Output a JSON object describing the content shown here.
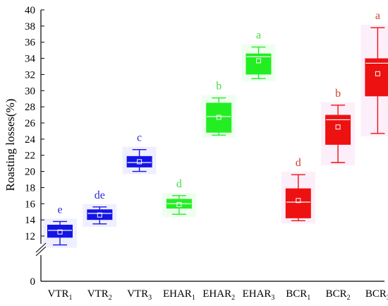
{
  "chart_data": {
    "type": "box",
    "ylabel": "Roasting losses(%)",
    "ylim": [
      0,
      40
    ],
    "axis_break": [
      0,
      12
    ],
    "y_ticks": [
      {
        "value": 0,
        "label": "0"
      },
      {
        "value": 12,
        "label": "12"
      },
      {
        "value": 14,
        "label": "14"
      },
      {
        "value": 16,
        "label": "16"
      },
      {
        "value": 18,
        "label": "18"
      },
      {
        "value": 20,
        "label": "20"
      },
      {
        "value": 22,
        "label": "22"
      },
      {
        "value": 24,
        "label": "24"
      },
      {
        "value": 26,
        "label": "26"
      },
      {
        "value": 28,
        "label": "28"
      },
      {
        "value": 30,
        "label": "30"
      },
      {
        "value": 32,
        "label": "32"
      },
      {
        "value": 34,
        "label": "34"
      },
      {
        "value": 36,
        "label": "36"
      },
      {
        "value": 38,
        "label": "38"
      },
      {
        "value": 40,
        "label": "40"
      }
    ],
    "colors": {
      "VTR": "#1414e6",
      "EHAR": "#22ee22",
      "BCR": "#ee1111"
    },
    "label_colors": {
      "VTR": "#2a2ae0",
      "EHAR": "#44dd44",
      "BCR": "#cc4433"
    },
    "halo_colors": {
      "VTR": "#b8b8ff",
      "EHAR": "#b8ffb8",
      "BCR": "#f0b8e8"
    },
    "groups": [
      {
        "base": "VTR",
        "sub": "1",
        "group": "VTR",
        "whisker_low": 10.9,
        "q1": 11.8,
        "median": 12.7,
        "q3": 13.4,
        "whisker_high": 13.8,
        "mean": 12.5,
        "letter": "e"
      },
      {
        "base": "VTR",
        "sub": "2",
        "group": "VTR",
        "whisker_low": 13.5,
        "q1": 14.0,
        "median": 14.8,
        "q3": 15.3,
        "whisker_high": 15.6,
        "mean": 14.6,
        "letter": "de"
      },
      {
        "base": "VTR",
        "sub": "3",
        "group": "VTR",
        "whisker_low": 20.0,
        "q1": 20.5,
        "median": 21.1,
        "q3": 21.9,
        "whisker_high": 22.7,
        "mean": 21.2,
        "letter": "c"
      },
      {
        "base": "EHAR",
        "sub": "1",
        "group": "EHAR",
        "whisker_low": 14.7,
        "q1": 15.4,
        "median": 16.0,
        "q3": 16.6,
        "whisker_high": 17.0,
        "mean": 15.9,
        "letter": "d"
      },
      {
        "base": "EHAR",
        "sub": "2",
        "group": "EHAR",
        "whisker_low": 24.5,
        "q1": 24.8,
        "median": 26.8,
        "q3": 28.5,
        "whisker_high": 29.1,
        "mean": 26.7,
        "letter": "b"
      },
      {
        "base": "EHAR",
        "sub": "3",
        "group": "EHAR",
        "whisker_low": 31.5,
        "q1": 32.0,
        "median": 34.2,
        "q3": 34.6,
        "whisker_high": 35.4,
        "mean": 33.7,
        "letter": "a"
      },
      {
        "base": "BCR",
        "sub": "1",
        "group": "BCR",
        "whisker_low": 13.9,
        "q1": 14.2,
        "median": 16.2,
        "q3": 17.9,
        "whisker_high": 19.6,
        "mean": 16.4,
        "letter": "d"
      },
      {
        "base": "BCR",
        "sub": "2",
        "group": "BCR",
        "whisker_low": 21.1,
        "q1": 23.3,
        "median": 26.4,
        "q3": 27.0,
        "whisker_high": 28.2,
        "mean": 25.5,
        "letter": "b"
      },
      {
        "base": "BCR",
        "sub": "3",
        "group": "BCR",
        "whisker_low": 24.7,
        "q1": 29.3,
        "median": 33.4,
        "q3": 34.0,
        "whisker_high": 37.8,
        "mean": 32.1,
        "letter": "a"
      }
    ]
  }
}
